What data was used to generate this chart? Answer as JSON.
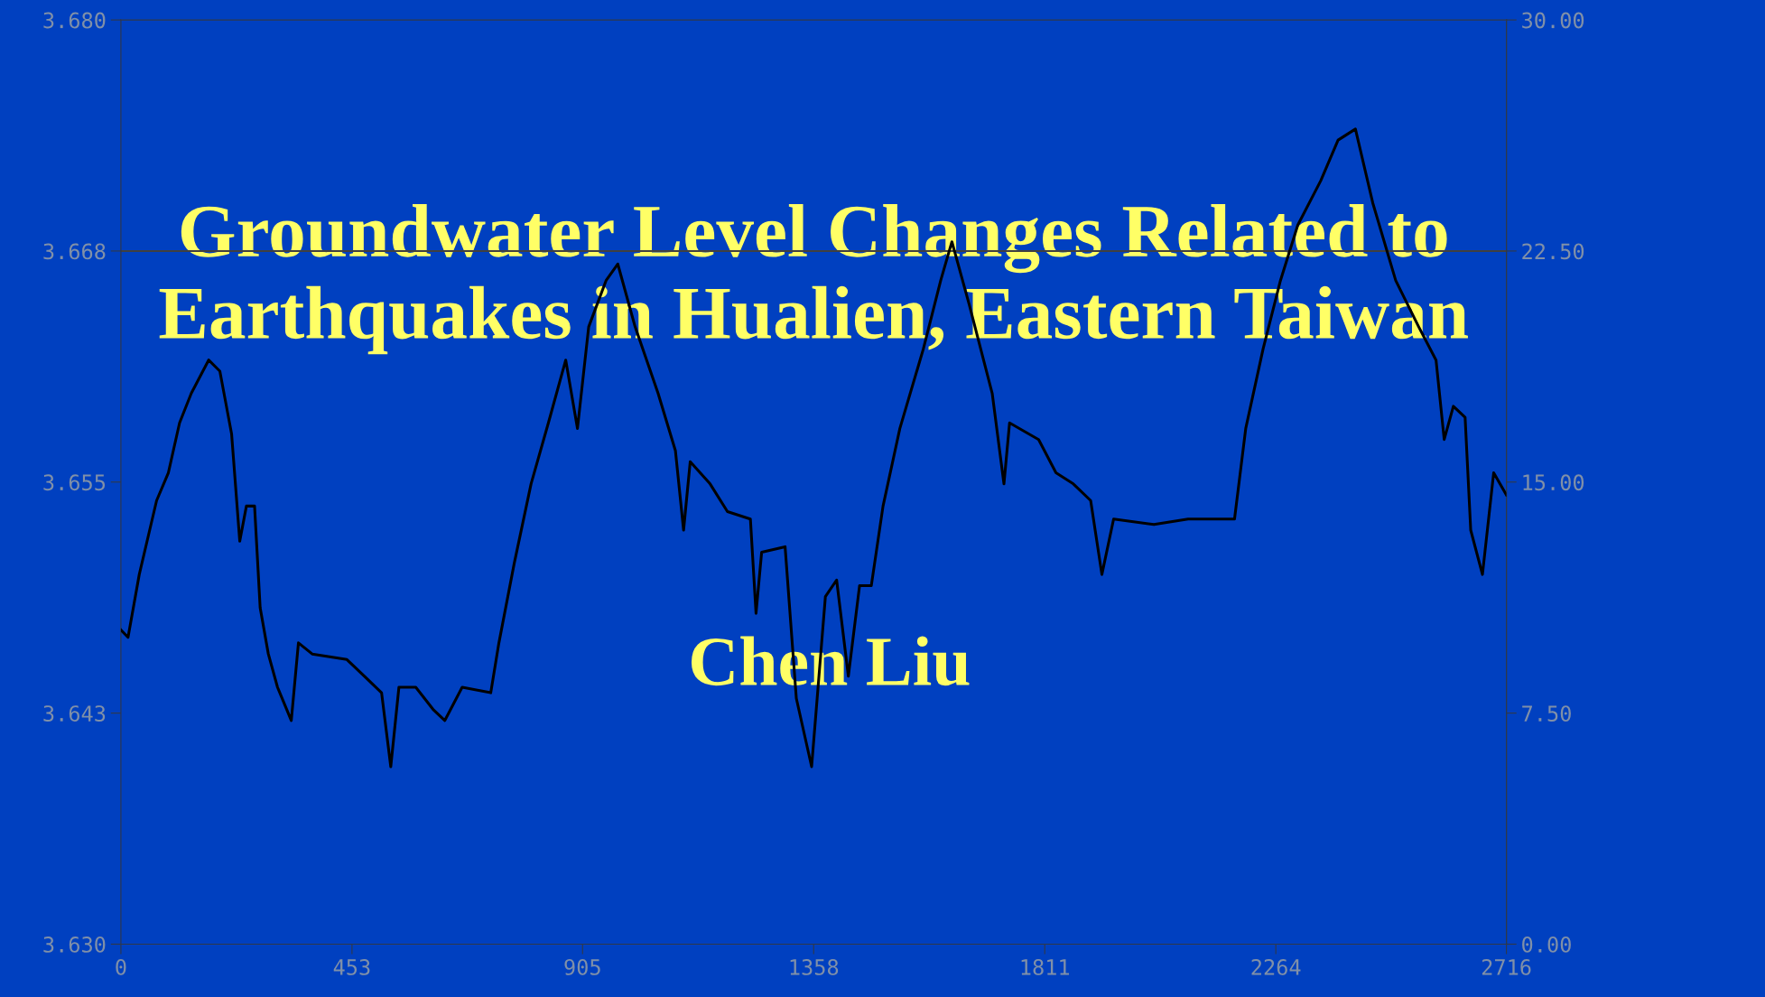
{
  "chart_data": {
    "type": "line",
    "title": "Groundwater Level Changes Related to\nEarthquakes in Hualien, Eastern Taiwan",
    "annotations": [
      "Chen Liu"
    ],
    "x": [
      0,
      14,
      36,
      70,
      93,
      115,
      138,
      172,
      194,
      217,
      233,
      246,
      262,
      273,
      289,
      307,
      334,
      348,
      375,
      443,
      477,
      511,
      529,
      545,
      578,
      612,
      635,
      669,
      725,
      741,
      771,
      804,
      838,
      872,
      895,
      917,
      951,
      974,
      1008,
      1053,
      1087,
      1103,
      1116,
      1155,
      1189,
      1234,
      1245,
      1256,
      1302,
      1324,
      1354,
      1381,
      1403,
      1426,
      1448,
      1471,
      1494,
      1527,
      1573,
      1607,
      1629,
      1663,
      1708,
      1731,
      1742,
      1799,
      1833,
      1867,
      1901,
      1923,
      1946,
      2025,
      2092,
      2183,
      2205,
      2239,
      2273,
      2307,
      2352,
      2386,
      2420,
      2454,
      2499,
      2544,
      2578,
      2594,
      2612,
      2635,
      2646,
      2669,
      2691,
      2716
    ],
    "series": [
      {
        "color": "#000000",
        "values": [
          3.647,
          3.6466,
          3.65,
          3.654,
          3.6555,
          3.6582,
          3.6598,
          3.6616,
          3.661,
          3.6576,
          3.6518,
          3.6537,
          3.6537,
          3.6482,
          3.6457,
          3.6439,
          3.6421,
          3.6463,
          3.6457,
          3.6454,
          3.6445,
          3.6436,
          3.6396,
          3.6439,
          3.6439,
          3.6427,
          3.6421,
          3.6439,
          3.6436,
          3.6463,
          3.6506,
          3.6549,
          3.6582,
          3.6616,
          3.6579,
          3.6634,
          3.6659,
          3.6668,
          3.6634,
          3.6598,
          3.6567,
          3.6524,
          3.6561,
          3.6549,
          3.6534,
          3.653,
          3.6479,
          3.6512,
          3.6515,
          3.6433,
          3.6396,
          3.6488,
          3.6497,
          3.6445,
          3.6494,
          3.6494,
          3.6537,
          3.6579,
          3.6622,
          3.6659,
          3.668,
          3.6646,
          3.6598,
          3.6549,
          3.6582,
          3.6573,
          3.6555,
          3.6549,
          3.654,
          3.65,
          3.653,
          3.6527,
          3.653,
          3.653,
          3.6579,
          3.6622,
          3.6659,
          3.6689,
          3.6713,
          3.6735,
          3.6741,
          3.6701,
          3.6659,
          3.6634,
          3.6616,
          3.6573,
          3.6591,
          3.6585,
          3.6524,
          3.65,
          3.6555,
          3.6543
        ]
      }
    ],
    "xlim": [
      0,
      2716
    ],
    "xticks": [
      0,
      453,
      905,
      1358,
      1811,
      2264,
      2716
    ],
    "ylim": [
      3.63,
      3.68
    ],
    "yticks": [
      {
        "value": 3.63,
        "label": "3.630"
      },
      {
        "value": 3.6425,
        "label": "3.643"
      },
      {
        "value": 3.655,
        "label": "3.655"
      },
      {
        "value": 3.6675,
        "label": "3.668"
      },
      {
        "value": 3.68,
        "label": "3.680"
      }
    ],
    "y2lim": [
      0,
      30
    ],
    "y2ticks": [
      {
        "value": 0,
        "label": "0.00"
      },
      {
        "value": 7.5,
        "label": "7.50"
      },
      {
        "value": 15,
        "label": "15.00"
      },
      {
        "value": 22.5,
        "label": "22.50"
      },
      {
        "value": 30,
        "label": "30.00"
      }
    ],
    "ref_lines": [
      {
        "axis": "y",
        "value": 3.6675,
        "color": "#404040"
      }
    ],
    "grid": false,
    "legend": false,
    "marker": "none",
    "line_style": "solid"
  }
}
